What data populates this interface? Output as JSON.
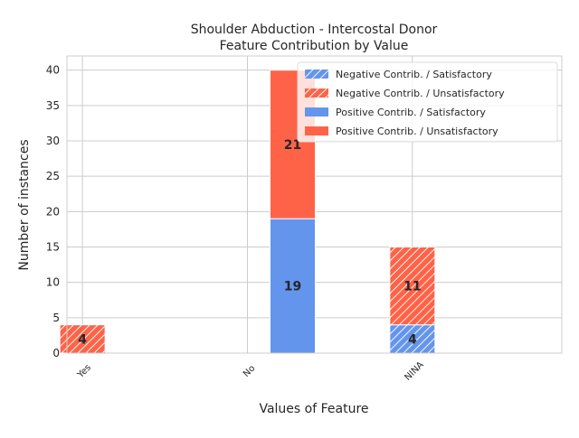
{
  "chart_data": {
    "type": "bar",
    "stacked": true,
    "title_line1": "Shoulder Abduction - Intercostal Donor",
    "title_line2": "Feature Contribution by Value",
    "xlabel": "Values of Feature",
    "ylabel": "Number of instances",
    "categories": [
      "Yes",
      "No",
      "NINA"
    ],
    "ylim": [
      0,
      42
    ],
    "yticks": [
      0,
      5,
      10,
      15,
      20,
      25,
      30,
      35,
      40
    ],
    "grid": true,
    "legend_position": "top-right",
    "series": [
      {
        "name": "Negative Contrib. / Satisfactory",
        "group": "negative",
        "hatched": true,
        "color": "#6495ed",
        "values": [
          0,
          0,
          4
        ]
      },
      {
        "name": "Negative Contrib. / Unsatisfactory",
        "group": "negative",
        "hatched": true,
        "color": "#ff6347",
        "values": [
          4,
          0,
          11
        ]
      },
      {
        "name": "Positive Contrib. / Satisfactory",
        "group": "positive",
        "hatched": false,
        "color": "#6495ed",
        "values": [
          0,
          19,
          0
        ]
      },
      {
        "name": "Positive Contrib. / Unsatisfactory",
        "group": "positive",
        "hatched": false,
        "color": "#ff6347",
        "values": [
          0,
          21,
          0
        ]
      }
    ]
  }
}
